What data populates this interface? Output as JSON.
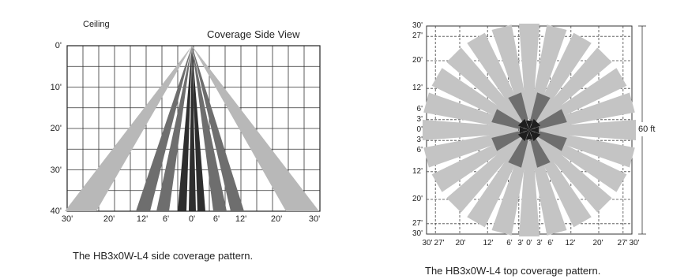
{
  "side": {
    "ceiling_label": "Ceiling",
    "title": "Coverage Side View",
    "y_ticks": [
      "0'",
      "10'",
      "20'",
      "30'",
      "40'"
    ],
    "x_ticks": [
      "30'",
      "20'",
      "12'",
      "6'",
      "0'",
      "6'",
      "12'",
      "20'",
      "30'"
    ],
    "caption": "The HB3x0W-L4 side coverage pattern.",
    "colors": {
      "light": "#b8b8b8",
      "mid": "#6e6e6e",
      "dark": "#2e2e2e"
    }
  },
  "top": {
    "y_ticks": [
      "30'",
      "27'",
      "20'",
      "12'",
      "6'",
      "3'",
      "0'",
      "3'",
      "6'",
      "12'",
      "20'",
      "27'",
      "30'"
    ],
    "x_ticks": [
      "30'",
      "27'",
      "20'",
      "12'",
      "6'",
      "3'",
      "0'",
      "3'",
      "6'",
      "12'",
      "20'",
      "27'",
      "30'"
    ],
    "dimension_label": "60 ft",
    "caption": "The HB3x0W-L4 top coverage pattern.",
    "colors": {
      "light": "#c4c4c4",
      "mid": "#6e6e6e",
      "dark": "#1e1e1e"
    }
  }
}
